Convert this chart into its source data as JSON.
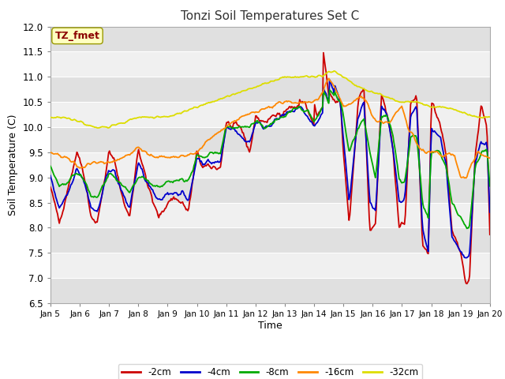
{
  "title": "Tonzi Soil Temperatures Set C",
  "xlabel": "Time",
  "ylabel": "Soil Temperature (C)",
  "ylim": [
    6.5,
    12.0
  ],
  "annotation_text": "TZ_fmet",
  "annotation_color": "#8B0000",
  "annotation_bg": "#FFFFC0",
  "fig_bg": "#FFFFFF",
  "plot_bg_light": "#F0F0F0",
  "plot_bg_dark": "#E0E0E0",
  "series_colors": {
    "-2cm": "#CC0000",
    "-4cm": "#0000CC",
    "-8cm": "#00AA00",
    "-16cm": "#FF8800",
    "-32cm": "#DDDD00"
  },
  "tick_labels": [
    "Jan 5",
    "Jan 6",
    "Jan 7",
    "Jan 8",
    "Jan 9",
    "Jan 10",
    "Jan 11",
    "Jan 12",
    "Jan 13",
    "Jan 14",
    "Jan 15",
    "Jan 16",
    "Jan 17",
    "Jan 18",
    "Jan 19",
    "Jan 20"
  ],
  "yticks": [
    6.5,
    7.0,
    7.5,
    8.0,
    8.5,
    9.0,
    9.5,
    10.0,
    10.5,
    11.0,
    11.5,
    12.0
  ],
  "num_points": 500
}
